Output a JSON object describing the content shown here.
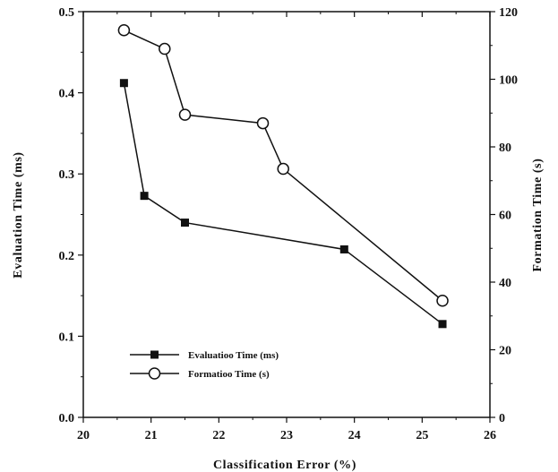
{
  "chart_data": {
    "type": "line",
    "title": "",
    "xlabel": "Classification Error (%)",
    "ylabel_left": "Evaluation Time (ms)",
    "ylabel_right": "Formation Time (s)",
    "xlim": [
      20,
      26
    ],
    "ylim_left": [
      0.0,
      0.5
    ],
    "ylim_right": [
      0,
      120
    ],
    "x_ticks": [
      "20",
      "21",
      "22",
      "23",
      "24",
      "25",
      "26"
    ],
    "y_left_ticks": [
      "0.0",
      "0.1",
      "0.2",
      "0.3",
      "0.4",
      "0.5"
    ],
    "y_right_ticks": [
      "0",
      "20",
      "40",
      "60",
      "80",
      "100",
      "120"
    ],
    "grid": false,
    "legend_position": "bottom-left",
    "series": [
      {
        "name": "Evaluation Time (ms)",
        "axis": "left",
        "marker": "filled-square",
        "color": "#111111",
        "x": [
          20.6,
          20.9,
          21.5,
          23.85,
          25.3
        ],
        "y": [
          0.412,
          0.273,
          0.24,
          0.207,
          0.115
        ]
      },
      {
        "name": "Formation Time (s)",
        "axis": "right",
        "marker": "open-circle",
        "color": "#111111",
        "x": [
          20.6,
          21.2,
          21.5,
          22.65,
          22.95,
          25.3
        ],
        "y": [
          114.5,
          109,
          89.5,
          87,
          73.5,
          34.5
        ]
      }
    ],
    "legend": [
      "Evaluatioo Time (ms)",
      "Formatioo Time (s)"
    ]
  }
}
